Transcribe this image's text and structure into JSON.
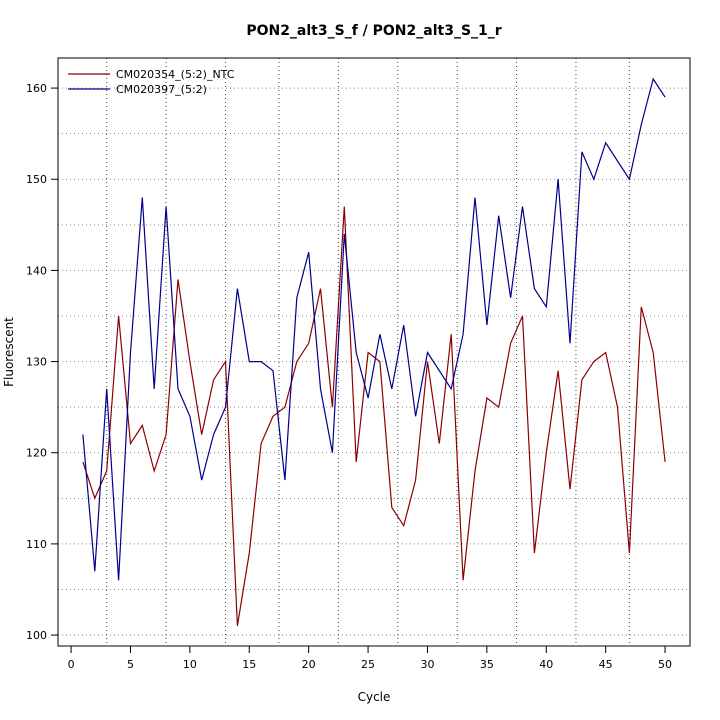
{
  "chart_data": {
    "type": "line",
    "title": "PON2_alt3_S_f / PON2_alt3_S_1_r",
    "xlabel": "Cycle",
    "ylabel": "Fluorescent",
    "xlim": [
      -1.1,
      52.1
    ],
    "ylim": [
      98.8,
      163.3
    ],
    "xticks": [
      0,
      5,
      10,
      15,
      20,
      25,
      30,
      35,
      40,
      45,
      50
    ],
    "yticks": [
      100,
      110,
      120,
      130,
      140,
      150,
      160
    ],
    "vlines": [
      3,
      8,
      13,
      17.5,
      22.5,
      27.5,
      32.5,
      37.5,
      42.5,
      47
    ],
    "hgrid": [
      100,
      105,
      110,
      115,
      120,
      125,
      130,
      135,
      140,
      145,
      150,
      155,
      160
    ],
    "legend_position": "top-left",
    "series": [
      {
        "name": "CM020354_(5:2)_NTC",
        "color": "#8b0000",
        "x": [
          1,
          2,
          3,
          4,
          5,
          6,
          7,
          8,
          9,
          10,
          11,
          12,
          13,
          14,
          15,
          16,
          17,
          18,
          19,
          20,
          21,
          22,
          23,
          24,
          25,
          26,
          27,
          28,
          29,
          30,
          31,
          32,
          33,
          34,
          35,
          36,
          37,
          38,
          39,
          40,
          41,
          42,
          43,
          44,
          45,
          46,
          47,
          48,
          49,
          50
        ],
        "y": [
          119,
          115,
          118,
          135,
          121,
          123,
          118,
          122,
          139,
          130,
          122,
          128,
          130,
          101,
          109,
          121,
          124,
          125,
          130,
          132,
          138,
          125,
          147,
          119,
          131,
          130,
          114,
          112,
          117,
          130,
          121,
          133,
          106,
          118,
          126,
          125,
          132,
          135,
          109,
          120,
          129,
          116,
          128,
          130,
          131,
          125,
          109,
          136,
          131,
          119
        ]
      },
      {
        "name": "CM020397_(5:2)",
        "color": "#00008b",
        "x": [
          1,
          2,
          3,
          4,
          5,
          6,
          7,
          8,
          9,
          10,
          11,
          12,
          13,
          14,
          15,
          16,
          17,
          18,
          19,
          20,
          21,
          22,
          23,
          24,
          25,
          26,
          27,
          28,
          29,
          30,
          31,
          32,
          33,
          34,
          35,
          36,
          37,
          38,
          39,
          40,
          41,
          42,
          43,
          44,
          45,
          46,
          47,
          48,
          49,
          50
        ],
        "y": [
          122,
          107,
          127,
          106,
          131,
          148,
          127,
          147,
          127,
          124,
          117,
          122,
          125,
          138,
          130,
          130,
          129,
          117,
          137,
          142,
          127,
          120,
          144,
          131,
          126,
          133,
          127,
          134,
          124,
          131,
          129,
          127,
          133,
          148,
          134,
          146,
          137,
          147,
          138,
          136,
          150,
          132,
          153,
          150,
          154,
          152,
          150,
          156,
          161,
          159
        ]
      }
    ]
  }
}
